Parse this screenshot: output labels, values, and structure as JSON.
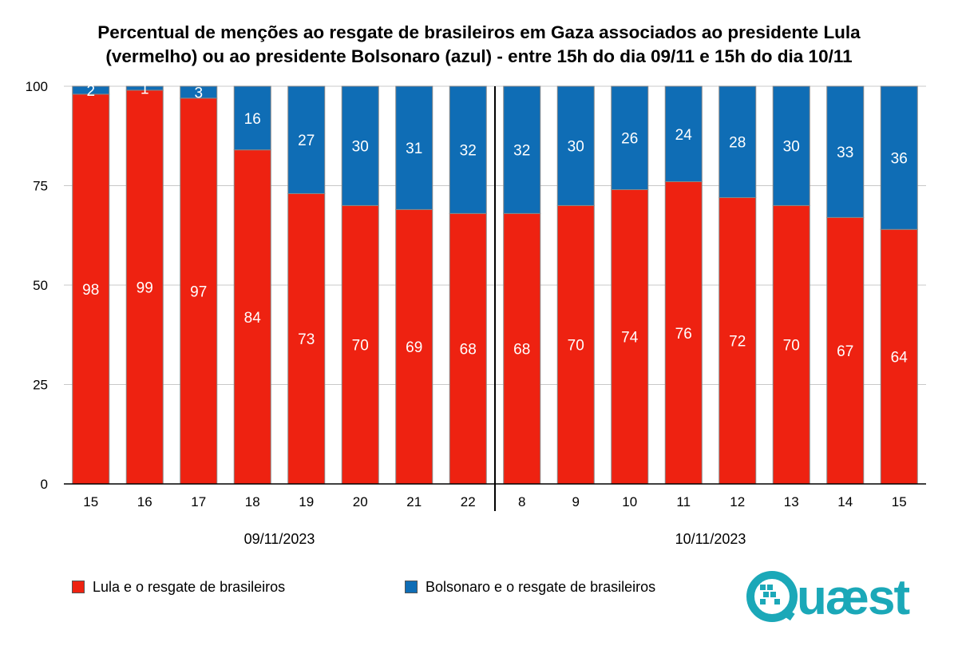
{
  "title": {
    "line1": "Percentual de menções ao resgate de brasileiros em Gaza associados ao presidente Lula",
    "line2": "(vermelho) ou ao presidente Bolsonaro (azul) - entre 15h do dia 09/11 e 15h do dia 10/11"
  },
  "brand": {
    "logo_text": "Quæst",
    "color": "#1ba8b8"
  },
  "colors": {
    "lula": "#ee2211",
    "bolsonaro": "#0f6db5"
  },
  "chart_data": {
    "type": "bar",
    "stacked": true,
    "ylim": [
      0,
      100
    ],
    "yticks": [
      0,
      25,
      50,
      75,
      100
    ],
    "grid": true,
    "categories": [
      "15",
      "16",
      "17",
      "18",
      "19",
      "20",
      "21",
      "22",
      "8",
      "9",
      "10",
      "11",
      "12",
      "13",
      "14",
      "15"
    ],
    "groups": [
      {
        "label": "09/11/2023",
        "start": 0,
        "end": 7
      },
      {
        "label": "10/11/2023",
        "start": 8,
        "end": 15
      }
    ],
    "series": [
      {
        "name": "Lula e o resgate de brasileiros",
        "color": "#ee2211",
        "values": [
          98,
          99,
          97,
          84,
          73,
          70,
          69,
          68,
          68,
          70,
          74,
          76,
          72,
          70,
          67,
          64
        ]
      },
      {
        "name": "Bolsonaro e o resgate de brasileiros",
        "color": "#0f6db5",
        "values": [
          2,
          1,
          3,
          16,
          27,
          30,
          31,
          32,
          32,
          30,
          26,
          24,
          28,
          30,
          33,
          36
        ]
      }
    ],
    "legend_position": "bottom-left"
  }
}
